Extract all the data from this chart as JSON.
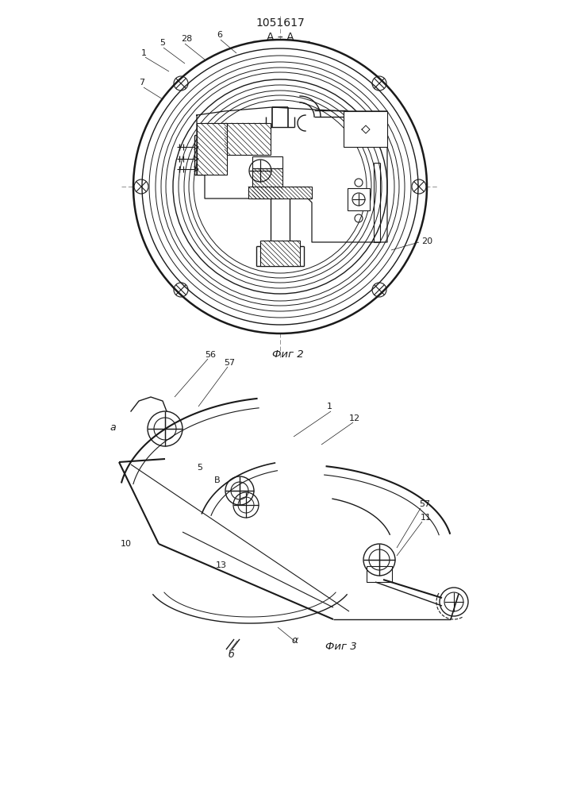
{
  "bg_color": "#ffffff",
  "line_color": "#1a1a1a",
  "title_text": "1051617",
  "fig2_label": "A – A",
  "fig2_caption": "Фиг 2",
  "fig3_caption": "Фиг 3",
  "page_width": 7.07,
  "page_height": 10.0,
  "dpi": 100
}
